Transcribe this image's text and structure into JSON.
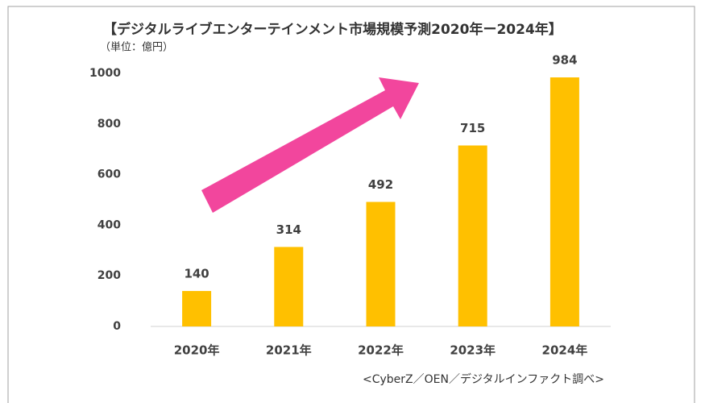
{
  "chart_data": {
    "type": "bar",
    "title": "【デジタルライブエンターテインメント市場規模予測2020年ー2024年】",
    "subtitle": "（単位：億円）",
    "source": "<CyberZ／OEN／デジタルインファクト調べ>",
    "categories": [
      "2020年",
      "2021年",
      "2022年",
      "2023年",
      "2024年"
    ],
    "values": [
      140,
      314,
      492,
      715,
      984
    ],
    "color": "#ffc000",
    "ylim": [
      0,
      1000
    ],
    "yticks": [
      0,
      200,
      400,
      600,
      800,
      1000
    ],
    "grid": false
  }
}
